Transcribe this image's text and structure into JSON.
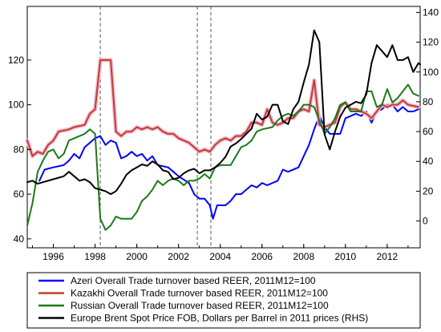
{
  "chart_data": {
    "type": "line",
    "x_ticks": [
      "1996",
      "1998",
      "2000",
      "2002",
      "2004",
      "2006",
      "2008",
      "2010",
      "2012"
    ],
    "x_range": [
      1994.75,
      2013.58
    ],
    "left_axis": {
      "ticks": [
        "40",
        "60",
        "80",
        "100",
        "120"
      ],
      "range": [
        36,
        144
      ]
    },
    "right_axis": {
      "ticks": [
        "0",
        "20",
        "40",
        "60",
        "80",
        "100",
        "120",
        "140"
      ],
      "range": [
        -18,
        144
      ]
    },
    "vlines": [
      1998.25,
      2002.9,
      2003.55
    ],
    "series": [
      {
        "name": "Azeri Overall Trade turnover based REER, 2011M12=100",
        "color": "#0000ff",
        "axis": "left",
        "points": [
          [
            1995.33,
            66
          ],
          [
            1995.58,
            71
          ],
          [
            1996.0,
            72
          ],
          [
            1996.5,
            73
          ],
          [
            1996.75,
            75
          ],
          [
            1997.0,
            78
          ],
          [
            1997.25,
            76
          ],
          [
            1997.5,
            81
          ],
          [
            1997.75,
            83
          ],
          [
            1998.0,
            85
          ],
          [
            1998.25,
            86
          ],
          [
            1998.5,
            82
          ],
          [
            1998.75,
            84
          ],
          [
            1999.0,
            83
          ],
          [
            1999.25,
            76
          ],
          [
            1999.5,
            77
          ],
          [
            1999.75,
            79
          ],
          [
            2000.0,
            77
          ],
          [
            2000.25,
            78
          ],
          [
            2000.5,
            75
          ],
          [
            2000.75,
            77
          ],
          [
            2001.0,
            73
          ],
          [
            2001.5,
            72
          ],
          [
            2001.75,
            70
          ],
          [
            2002.0,
            68
          ],
          [
            2002.5,
            65
          ],
          [
            2002.75,
            60
          ],
          [
            2003.0,
            58
          ],
          [
            2003.25,
            58
          ],
          [
            2003.5,
            55
          ],
          [
            2003.65,
            49
          ],
          [
            2003.85,
            55
          ],
          [
            2004.25,
            55
          ],
          [
            2004.5,
            57
          ],
          [
            2004.75,
            60
          ],
          [
            2005.0,
            60
          ],
          [
            2005.5,
            64
          ],
          [
            2005.75,
            63
          ],
          [
            2006.0,
            65
          ],
          [
            2006.25,
            64
          ],
          [
            2006.75,
            66
          ],
          [
            2007.0,
            71
          ],
          [
            2007.25,
            70
          ],
          [
            2007.75,
            72
          ],
          [
            2008.0,
            77
          ],
          [
            2008.25,
            82
          ],
          [
            2008.5,
            89
          ],
          [
            2008.75,
            95
          ],
          [
            2009.0,
            90
          ],
          [
            2009.25,
            87
          ],
          [
            2009.75,
            87
          ],
          [
            2010.0,
            94
          ],
          [
            2010.5,
            96
          ],
          [
            2010.75,
            95
          ],
          [
            2011.0,
            97
          ],
          [
            2011.25,
            92
          ],
          [
            2011.5,
            97
          ],
          [
            2011.75,
            98
          ],
          [
            2012.0,
            100
          ],
          [
            2012.25,
            100
          ],
          [
            2012.5,
            97
          ],
          [
            2012.75,
            99
          ],
          [
            2013.0,
            97
          ],
          [
            2013.25,
            97
          ],
          [
            2013.5,
            98
          ]
        ]
      },
      {
        "name": "Kazakhi Overall Trade turnover based REER, 2011M12=100",
        "color": "#c0402a",
        "axis": "left",
        "points": [
          [
            1994.75,
            84
          ],
          [
            1995.0,
            77
          ],
          [
            1995.25,
            79
          ],
          [
            1995.5,
            78
          ],
          [
            1995.75,
            82
          ],
          [
            1996.0,
            84
          ],
          [
            1996.25,
            88
          ],
          [
            1996.75,
            89
          ],
          [
            1997.0,
            90
          ],
          [
            1997.5,
            91
          ],
          [
            1997.75,
            96
          ],
          [
            1998.0,
            98
          ],
          [
            1998.25,
            120
          ],
          [
            1998.75,
            120
          ],
          [
            1999.0,
            88
          ],
          [
            1999.25,
            86
          ],
          [
            1999.5,
            88
          ],
          [
            1999.75,
            88
          ],
          [
            2000.0,
            90
          ],
          [
            2000.25,
            89
          ],
          [
            2000.5,
            90
          ],
          [
            2000.75,
            89
          ],
          [
            2001.0,
            90
          ],
          [
            2001.25,
            88
          ],
          [
            2001.5,
            87
          ],
          [
            2001.75,
            87
          ],
          [
            2002.0,
            85
          ],
          [
            2002.5,
            83
          ],
          [
            2002.75,
            81
          ],
          [
            2003.0,
            79
          ],
          [
            2003.25,
            80
          ],
          [
            2003.5,
            79
          ],
          [
            2003.75,
            82
          ],
          [
            2004.0,
            84
          ],
          [
            2004.25,
            85
          ],
          [
            2004.5,
            84
          ],
          [
            2004.75,
            86
          ],
          [
            2005.0,
            86
          ],
          [
            2005.25,
            88
          ],
          [
            2005.5,
            92
          ],
          [
            2005.75,
            92
          ],
          [
            2006.0,
            91
          ],
          [
            2006.25,
            98
          ],
          [
            2006.5,
            92
          ],
          [
            2006.75,
            91
          ],
          [
            2007.0,
            92
          ],
          [
            2007.25,
            94
          ],
          [
            2007.5,
            94
          ],
          [
            2007.75,
            97
          ],
          [
            2008.0,
            98
          ],
          [
            2008.25,
            97
          ],
          [
            2008.5,
            111
          ],
          [
            2008.75,
            91
          ],
          [
            2009.0,
            90
          ],
          [
            2009.25,
            91
          ],
          [
            2009.5,
            92
          ],
          [
            2009.75,
            99
          ],
          [
            2010.0,
            101
          ],
          [
            2010.25,
            98
          ],
          [
            2010.5,
            98
          ],
          [
            2010.75,
            97
          ],
          [
            2011.0,
            96
          ],
          [
            2011.25,
            94
          ],
          [
            2011.5,
            97
          ],
          [
            2011.75,
            100
          ],
          [
            2012.0,
            99
          ],
          [
            2012.25,
            100
          ],
          [
            2012.5,
            100
          ],
          [
            2012.75,
            102
          ],
          [
            2013.0,
            100
          ],
          [
            2013.5,
            99
          ]
        ]
      },
      {
        "name": "Russian Overall Trade turnover based REER, 2011M12=100",
        "color": "#1a7a1a",
        "axis": "left",
        "points": [
          [
            1994.75,
            46
          ],
          [
            1995.0,
            56
          ],
          [
            1995.25,
            70
          ],
          [
            1995.5,
            75
          ],
          [
            1995.75,
            79
          ],
          [
            1996.0,
            80
          ],
          [
            1996.25,
            76
          ],
          [
            1996.5,
            78
          ],
          [
            1996.75,
            84
          ],
          [
            1997.0,
            85
          ],
          [
            1997.5,
            87
          ],
          [
            1997.75,
            89
          ],
          [
            1998.0,
            87
          ],
          [
            1998.25,
            49
          ],
          [
            1998.5,
            44
          ],
          [
            1998.75,
            46
          ],
          [
            1999.0,
            50
          ],
          [
            1999.25,
            49
          ],
          [
            1999.75,
            49
          ],
          [
            2000.0,
            52
          ],
          [
            2000.25,
            57
          ],
          [
            2000.5,
            59
          ],
          [
            2000.75,
            62
          ],
          [
            2001.0,
            66
          ],
          [
            2001.25,
            64
          ],
          [
            2001.5,
            66
          ],
          [
            2001.75,
            67
          ],
          [
            2002.0,
            66
          ],
          [
            2002.25,
            64
          ],
          [
            2002.5,
            66
          ],
          [
            2002.75,
            66
          ],
          [
            2003.0,
            67
          ],
          [
            2003.25,
            69
          ],
          [
            2003.5,
            67
          ],
          [
            2003.75,
            72
          ],
          [
            2004.0,
            73
          ],
          [
            2004.5,
            73
          ],
          [
            2004.75,
            77
          ],
          [
            2005.0,
            81
          ],
          [
            2005.25,
            82
          ],
          [
            2005.5,
            84
          ],
          [
            2005.75,
            88
          ],
          [
            2006.0,
            89
          ],
          [
            2006.5,
            90
          ],
          [
            2006.75,
            93
          ],
          [
            2007.0,
            95
          ],
          [
            2007.25,
            96
          ],
          [
            2007.5,
            95
          ],
          [
            2007.75,
            97
          ],
          [
            2008.0,
            100
          ],
          [
            2008.25,
            100
          ],
          [
            2008.5,
            99
          ],
          [
            2008.75,
            93
          ],
          [
            2009.0,
            87
          ],
          [
            2009.25,
            90
          ],
          [
            2009.5,
            94
          ],
          [
            2009.75,
            100
          ],
          [
            2010.0,
            101
          ],
          [
            2010.25,
            97
          ],
          [
            2010.75,
            97
          ],
          [
            2011.0,
            106
          ],
          [
            2011.25,
            106
          ],
          [
            2011.5,
            99
          ],
          [
            2011.75,
            100
          ],
          [
            2012.0,
            107
          ],
          [
            2012.25,
            101
          ],
          [
            2012.5,
            103
          ],
          [
            2012.75,
            106
          ],
          [
            2013.0,
            109
          ],
          [
            2013.25,
            105
          ],
          [
            2013.5,
            104
          ]
        ]
      },
      {
        "name": "Europe Brent Spot Price FOB, Dollars per Barrel in 2011 prices (RHS)",
        "color": "#000000",
        "axis": "right",
        "points": [
          [
            1994.75,
            26
          ],
          [
            1995.0,
            27
          ],
          [
            1995.25,
            25
          ],
          [
            1995.5,
            26
          ],
          [
            1995.75,
            27
          ],
          [
            1996.0,
            28
          ],
          [
            1996.5,
            30
          ],
          [
            1996.75,
            33
          ],
          [
            1997.0,
            30
          ],
          [
            1997.25,
            27
          ],
          [
            1997.5,
            28
          ],
          [
            1997.75,
            26
          ],
          [
            1998.0,
            22
          ],
          [
            1998.25,
            21
          ],
          [
            1998.5,
            20
          ],
          [
            1998.75,
            18
          ],
          [
            1999.0,
            20
          ],
          [
            1999.25,
            25
          ],
          [
            1999.5,
            31
          ],
          [
            1999.75,
            34
          ],
          [
            2000.0,
            36
          ],
          [
            2000.25,
            38
          ],
          [
            2000.5,
            37
          ],
          [
            2000.75,
            40
          ],
          [
            2001.0,
            38
          ],
          [
            2001.25,
            34
          ],
          [
            2001.5,
            33
          ],
          [
            2001.75,
            28
          ],
          [
            2002.0,
            29
          ],
          [
            2002.25,
            32
          ],
          [
            2002.5,
            34
          ],
          [
            2002.75,
            35
          ],
          [
            2003.0,
            32
          ],
          [
            2003.25,
            34
          ],
          [
            2003.5,
            34
          ],
          [
            2003.75,
            36
          ],
          [
            2004.0,
            39
          ],
          [
            2004.25,
            43
          ],
          [
            2004.5,
            50
          ],
          [
            2004.75,
            52
          ],
          [
            2005.0,
            55
          ],
          [
            2005.5,
            62
          ],
          [
            2005.75,
            72
          ],
          [
            2006.0,
            68
          ],
          [
            2006.25,
            70
          ],
          [
            2006.5,
            78
          ],
          [
            2006.75,
            78
          ],
          [
            2007.0,
            67
          ],
          [
            2007.25,
            65
          ],
          [
            2007.5,
            75
          ],
          [
            2007.75,
            80
          ],
          [
            2008.0,
            93
          ],
          [
            2008.25,
            105
          ],
          [
            2008.5,
            128
          ],
          [
            2008.75,
            120
          ],
          [
            2009.0,
            58
          ],
          [
            2009.25,
            48
          ],
          [
            2009.5,
            60
          ],
          [
            2009.75,
            70
          ],
          [
            2010.0,
            76
          ],
          [
            2010.25,
            78
          ],
          [
            2010.5,
            80
          ],
          [
            2010.75,
            79
          ],
          [
            2011.0,
            85
          ],
          [
            2011.25,
            106
          ],
          [
            2011.5,
            118
          ],
          [
            2011.75,
            114
          ],
          [
            2012.0,
            110
          ],
          [
            2012.25,
            118
          ],
          [
            2012.5,
            108
          ],
          [
            2012.75,
            108
          ],
          [
            2013.0,
            110
          ],
          [
            2013.25,
            100
          ],
          [
            2013.5,
            106
          ],
          [
            2013.58,
            105
          ]
        ]
      }
    ]
  }
}
